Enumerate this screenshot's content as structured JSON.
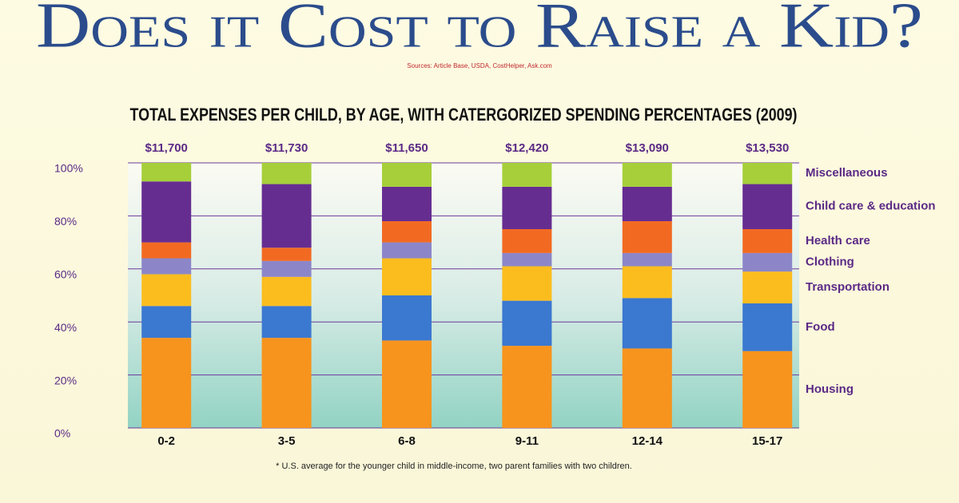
{
  "chart_data": {
    "type": "stacked_bar",
    "title": "Does it Cost to Raise a Kid?",
    "subtitle": "Sources: Article Base, USDA, CostHelper, Ask.com",
    "chart_title": "TOTAL EXPENSES PER CHILD, BY AGE, WITH CATERGORIZED SPENDING PERCENTAGES (2009)",
    "footnote": "* U.S. average for the younger child in middle-income, two parent families with two children.",
    "categories": [
      "0-2",
      "3-5",
      "6-8",
      "9-11",
      "12-14",
      "15-17"
    ],
    "totals": {
      "values": [
        11700,
        11730,
        11650,
        12420,
        13090,
        13530
      ],
      "value_labels": [
        "$11,700",
        "$11,730",
        "$11,650",
        "$12,420",
        "$13,090",
        "$13,530"
      ],
      "color": "#5b2a86"
    },
    "series": [
      {
        "name": "Housing",
        "color": "#f7941d",
        "values": [
          34,
          34,
          33,
          31,
          30,
          29
        ]
      },
      {
        "name": "Food",
        "color": "#3b78d0",
        "values": [
          12,
          12,
          17,
          17,
          19,
          18
        ]
      },
      {
        "name": "Transportation",
        "color": "#fbbd1e",
        "values": [
          12,
          11,
          14,
          13,
          12,
          12
        ]
      },
      {
        "name": "Clothing",
        "color": "#8c86c9",
        "values": [
          6,
          6,
          6,
          5,
          5,
          7
        ]
      },
      {
        "name": "Health care",
        "color": "#f26a22",
        "values": [
          6,
          5,
          8,
          9,
          12,
          9
        ]
      },
      {
        "name": "Child care & education",
        "color": "#662d91",
        "values": [
          23,
          24,
          13,
          16,
          13,
          17
        ]
      },
      {
        "name": "Miscellaneous",
        "color": "#a6cf3a",
        "values": [
          7,
          8,
          9,
          9,
          9,
          8
        ]
      }
    ],
    "ylim": [
      0,
      100
    ],
    "yticks": [
      {
        "value": 0,
        "label": "0%"
      },
      {
        "value": 20,
        "label": "20%"
      },
      {
        "value": 40,
        "label": "40%"
      },
      {
        "value": 60,
        "label": "60%"
      },
      {
        "value": 80,
        "label": "80%"
      },
      {
        "value": 100,
        "label": "100%"
      }
    ],
    "grid": true
  }
}
